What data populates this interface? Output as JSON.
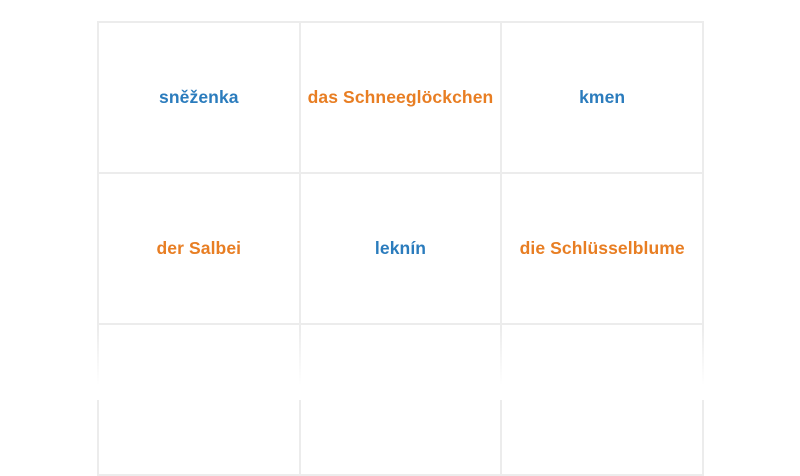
{
  "game": {
    "type": "word-matching-grid",
    "colors": {
      "czech_word": "#2b7cbd",
      "german_word": "#e87e23",
      "card_border": "#ececec",
      "background": "#ffffff"
    },
    "cards": [
      {
        "label": "sněženka",
        "color": "blue"
      },
      {
        "label": "das Schneeglöckchen",
        "color": "orange"
      },
      {
        "label": "kmen",
        "color": "blue"
      },
      {
        "label": "der Salbei",
        "color": "orange"
      },
      {
        "label": "leknín",
        "color": "blue"
      },
      {
        "label": "die Schlüsselblume",
        "color": "orange"
      },
      {
        "label": "",
        "color": ""
      },
      {
        "label": "",
        "color": ""
      },
      {
        "label": "",
        "color": ""
      }
    ]
  }
}
